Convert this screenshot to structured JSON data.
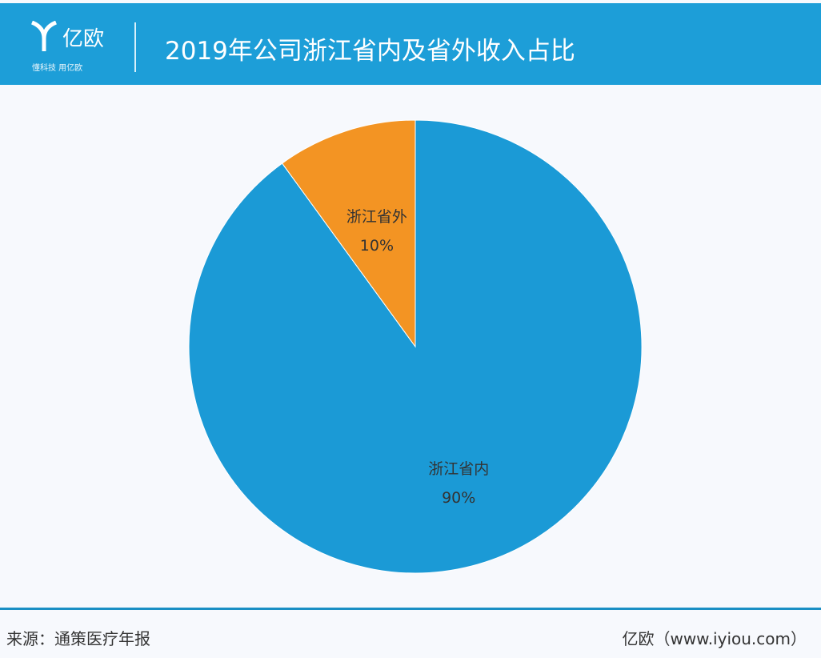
{
  "header": {
    "logo_name": "亿欧",
    "logo_tagline": "懂科技 用亿欧",
    "title": "2019年公司浙江省内及省外收入占比"
  },
  "chart_data": {
    "type": "pie",
    "title": "2019年公司浙江省内及省外收入占比",
    "start": "12 o'clock",
    "slices": [
      {
        "name": "浙江省内",
        "label": "90%",
        "value": 90,
        "color": "#1b9ad6"
      },
      {
        "name": "浙江省外",
        "label": "10%",
        "value": 10,
        "color": "#f39423"
      }
    ]
  },
  "footer": {
    "source": "来源：通策医疗年报",
    "credit": "亿欧（www.iyiou.com）"
  },
  "colors": {
    "header": "#1d9ed8",
    "background": "#f7f9fd"
  }
}
